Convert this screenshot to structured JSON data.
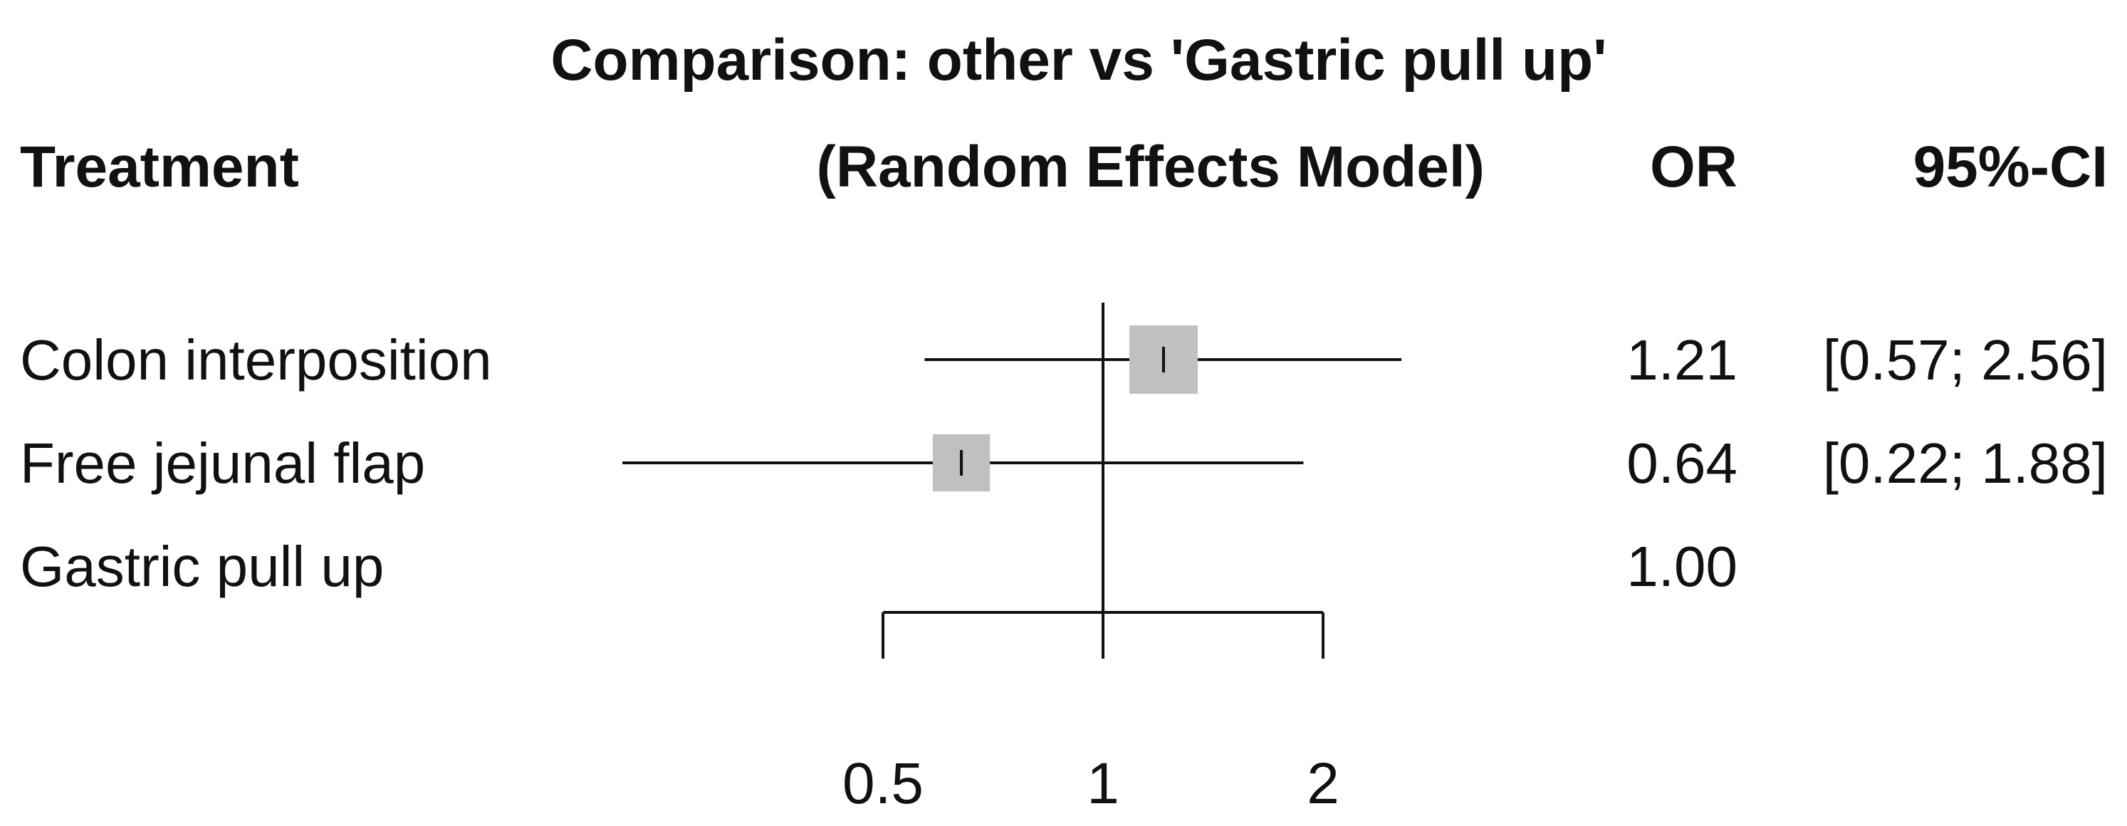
{
  "chart_data": {
    "type": "forest",
    "title": "Comparison: other vs 'Gastric pull up'",
    "subtitle": "(Random Effects Model)",
    "column_headers": {
      "treatment": "Treatment",
      "estimate": "OR",
      "ci": "95%-CI"
    },
    "xscale": "log",
    "xlim": [
      0.5,
      2
    ],
    "xticks": [
      0.5,
      1,
      2
    ],
    "xtick_labels": [
      "0.5",
      "1",
      "2"
    ],
    "reference_line": 1,
    "colors": {
      "box": "#c0c0c0",
      "line": "#111111"
    },
    "rows": [
      {
        "treatment": "Colon interposition",
        "or": 1.21,
        "ci_low": 0.57,
        "ci_high": 2.56,
        "or_label": "1.21",
        "ci_label": "[0.57; 2.56]",
        "weight": 1.0
      },
      {
        "treatment": "Free jejunal flap",
        "or": 0.64,
        "ci_low": 0.22,
        "ci_high": 1.88,
        "or_label": "0.64",
        "ci_label": "[0.22; 1.88]",
        "weight": 0.7
      },
      {
        "treatment": "Gastric pull up",
        "or": 1.0,
        "ci_low": null,
        "ci_high": null,
        "or_label": "1.00",
        "ci_label": "",
        "weight": 0
      }
    ]
  }
}
